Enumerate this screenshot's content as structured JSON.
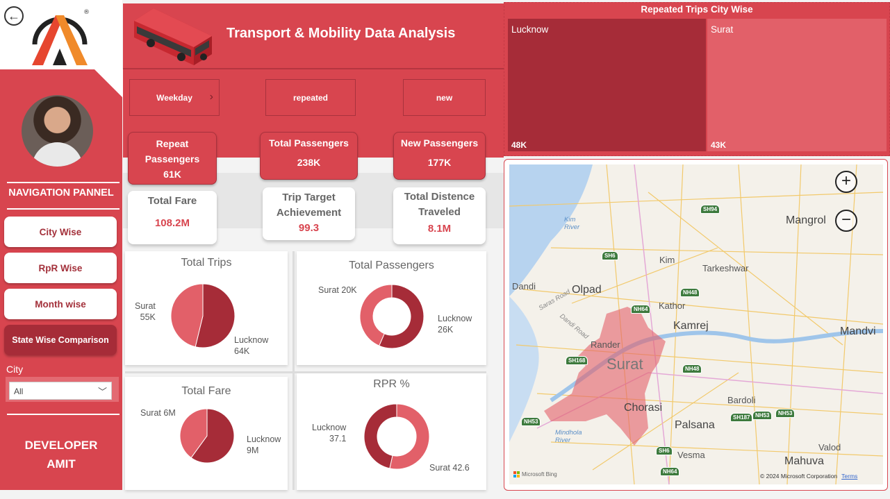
{
  "header": {
    "title": "Transport & Mobility Data Analysis",
    "filters": [
      "Weekday",
      "repeated",
      "new"
    ]
  },
  "sidebar": {
    "nav_title": "NAVIGATION PANNEL",
    "nav_items": [
      "City Wise",
      "RpR Wise",
      "Month wise",
      "State Wise Comparison"
    ],
    "city_label": "City",
    "city_value": "All",
    "developer_line1": "DEVELOPER",
    "developer_line2": "AMIT"
  },
  "kpis": {
    "repeat_passengers": {
      "label": "Repeat Passengers",
      "value": "61K"
    },
    "total_passengers": {
      "label": "Total Passengers",
      "value": "238K"
    },
    "new_passengers": {
      "label": "New Passengers",
      "value": "177K"
    },
    "total_fare": {
      "label": "Total Fare",
      "value": "108.2M"
    },
    "trip_target": {
      "label": "Trip Target Achievement",
      "value": "99.3"
    },
    "total_distance": {
      "label": "Total Distence Traveled",
      "value": "8.1M"
    }
  },
  "chart_data": [
    {
      "type": "pie",
      "title": "Total Trips",
      "categories": [
        "Lucknow",
        "Surat"
      ],
      "values": [
        64,
        55
      ],
      "data_labels": {
        "Lucknow": "64K",
        "Surat": "55K"
      },
      "colors": {
        "Lucknow": "#a62c38",
        "Surat": "#e26069"
      }
    },
    {
      "type": "pie",
      "title": "Total Passengers",
      "donut": true,
      "categories": [
        "Lucknow",
        "Surat"
      ],
      "values": [
        26,
        20
      ],
      "data_labels": {
        "Lucknow": "26K",
        "Surat": "20K"
      },
      "colors": {
        "Lucknow": "#a62c38",
        "Surat": "#e26069"
      }
    },
    {
      "type": "pie",
      "title": "Total Fare",
      "categories": [
        "Lucknow",
        "Surat"
      ],
      "values": [
        9,
        6
      ],
      "data_labels": {
        "Lucknow": "9M",
        "Surat": "6M"
      },
      "colors": {
        "Lucknow": "#a62c38",
        "Surat": "#e26069"
      }
    },
    {
      "type": "pie",
      "title": "RPR %",
      "donut": true,
      "categories": [
        "Surat",
        "Lucknow"
      ],
      "values": [
        42.6,
        37.1
      ],
      "data_labels": {
        "Surat": "42.6",
        "Lucknow": "37.1"
      },
      "colors": {
        "Surat": "#e26069",
        "Lucknow": "#a62c38"
      }
    },
    {
      "type": "heatmap",
      "title": "Repeated Trips City Wise",
      "chart_kind": "treemap",
      "categories": [
        "Lucknow",
        "Surat"
      ],
      "values": [
        48,
        43
      ],
      "data_labels": {
        "Lucknow": "48K",
        "Surat": "43K"
      },
      "colors": {
        "Lucknow": "#a62c38",
        "Surat": "#e26069"
      }
    }
  ],
  "map": {
    "labels": [
      "Mangrol",
      "Kim",
      "Tarkeshwar",
      "Dandi",
      "Olpad",
      "Kathor",
      "Kamrej",
      "Mandvi",
      "Rander",
      "Surat",
      "Chorasi",
      "Bardoli",
      "Palsana",
      "Valod",
      "Vesma",
      "Mahuva"
    ],
    "rivers": [
      "Kim River",
      "Mindhola River"
    ],
    "roads": [
      "Saras Road",
      "Dandi Road"
    ],
    "highways": [
      "SH94",
      "SH6",
      "NH48",
      "NH64",
      "NH48",
      "SH168",
      "NH53",
      "SH187",
      "NH53",
      "NH53",
      "SH6",
      "NH64"
    ],
    "attribution": "© 2024 Microsoft Corporation",
    "terms": "Terms",
    "provider": "Microsoft Bing"
  },
  "colors": {
    "accent": "#d8454f",
    "dark_accent": "#a62c38",
    "light_accent": "#e26069"
  }
}
